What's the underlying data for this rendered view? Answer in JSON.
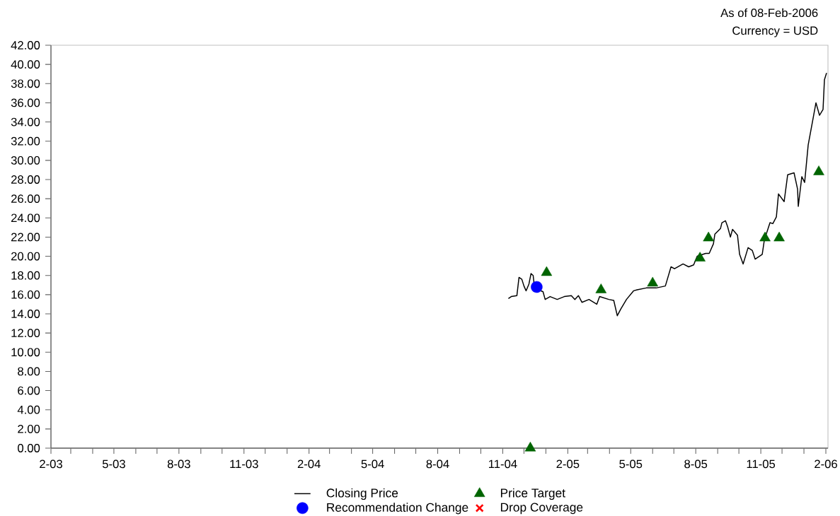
{
  "chart_data": {
    "type": "line",
    "annotations": [
      "As of 08-Feb-2006",
      "Currency = USD"
    ],
    "xlim": [
      "2003-02-01",
      "2006-02-04"
    ],
    "xticks": [
      {
        "value": "2003-02",
        "label": "2-03"
      },
      {
        "value": "2003-03",
        "label": null
      },
      {
        "value": "2003-04",
        "label": null
      },
      {
        "value": "2003-05",
        "label": "5-03"
      },
      {
        "value": "2003-06",
        "label": null
      },
      {
        "value": "2003-07",
        "label": null
      },
      {
        "value": "2003-08",
        "label": "8-03"
      },
      {
        "value": "2003-09",
        "label": null
      },
      {
        "value": "2003-10",
        "label": null
      },
      {
        "value": "2003-11",
        "label": "11-03"
      },
      {
        "value": "2003-12",
        "label": null
      },
      {
        "value": "2004-01",
        "label": null
      },
      {
        "value": "2004-02",
        "label": "2-04"
      },
      {
        "value": "2004-03",
        "label": null
      },
      {
        "value": "2004-04",
        "label": null
      },
      {
        "value": "2004-05",
        "label": "5-04"
      },
      {
        "value": "2004-06",
        "label": null
      },
      {
        "value": "2004-07",
        "label": null
      },
      {
        "value": "2004-08",
        "label": "8-04"
      },
      {
        "value": "2004-09",
        "label": null
      },
      {
        "value": "2004-10",
        "label": null
      },
      {
        "value": "2004-11",
        "label": "11-04"
      },
      {
        "value": "2004-12",
        "label": null
      },
      {
        "value": "2005-01",
        "label": null
      },
      {
        "value": "2005-02",
        "label": "2-05"
      },
      {
        "value": "2005-03",
        "label": null
      },
      {
        "value": "2005-04",
        "label": null
      },
      {
        "value": "2005-05",
        "label": "5-05"
      },
      {
        "value": "2005-06",
        "label": null
      },
      {
        "value": "2005-07",
        "label": null
      },
      {
        "value": "2005-08",
        "label": "8-05"
      },
      {
        "value": "2005-09",
        "label": null
      },
      {
        "value": "2005-10",
        "label": null
      },
      {
        "value": "2005-11",
        "label": "11-05"
      },
      {
        "value": "2005-12",
        "label": null
      },
      {
        "value": "2006-01",
        "label": null
      },
      {
        "value": "2006-02",
        "label": "2-06"
      }
    ],
    "ylim": [
      0,
      42
    ],
    "yticks": [
      {
        "value": 0,
        "label": "0.00"
      },
      {
        "value": 2,
        "label": "2.00"
      },
      {
        "value": 4,
        "label": "4.00"
      },
      {
        "value": 6,
        "label": "6.00"
      },
      {
        "value": 8,
        "label": "8.00"
      },
      {
        "value": 10,
        "label": "10.00"
      },
      {
        "value": 12,
        "label": "12.00"
      },
      {
        "value": 14,
        "label": "14.00"
      },
      {
        "value": 16,
        "label": "16.00"
      },
      {
        "value": 18,
        "label": "18.00"
      },
      {
        "value": 20,
        "label": "20.00"
      },
      {
        "value": 22,
        "label": "22.00"
      },
      {
        "value": 24,
        "label": "24.00"
      },
      {
        "value": 26,
        "label": "26.00"
      },
      {
        "value": 28,
        "label": "28.00"
      },
      {
        "value": 30,
        "label": "30.00"
      },
      {
        "value": 32,
        "label": "32.00"
      },
      {
        "value": 34,
        "label": "34.00"
      },
      {
        "value": 36,
        "label": "36.00"
      },
      {
        "value": 38,
        "label": "38.00"
      },
      {
        "value": 40,
        "label": "40.00"
      },
      {
        "value": 42,
        "label": "42.00"
      }
    ],
    "grid": false,
    "legend": "bottom",
    "series": [
      {
        "name": "Closing Price",
        "color": "#000000",
        "marker": "none",
        "line_style": "solid",
        "x": [
          "2004-11-09",
          "2004-11-13",
          "2004-11-21",
          "2004-11-24",
          "2004-11-28",
          "2004-12-01",
          "2004-12-04",
          "2004-12-08",
          "2004-12-11",
          "2004-12-14",
          "2004-12-16",
          "2004-12-28",
          "2004-12-31",
          "2005-01-07",
          "2005-01-17",
          "2005-01-27",
          "2005-02-06",
          "2005-02-11",
          "2005-02-16",
          "2005-02-21",
          "2005-03-03",
          "2005-03-14",
          "2005-03-18",
          "2005-03-31",
          "2005-04-07",
          "2005-04-12",
          "2005-04-17",
          "2005-04-25",
          "2005-05-05",
          "2005-05-10",
          "2005-05-23",
          "2005-06-06",
          "2005-06-19",
          "2005-06-27",
          "2005-07-02",
          "2005-07-14",
          "2005-07-22",
          "2005-07-29",
          "2005-08-03",
          "2005-08-15",
          "2005-08-20",
          "2005-08-26",
          "2005-08-28",
          "2005-09-05",
          "2005-09-07",
          "2005-09-12",
          "2005-09-15",
          "2005-09-19",
          "2005-09-22",
          "2005-09-29",
          "2005-10-02",
          "2005-10-07",
          "2005-10-14",
          "2005-10-20",
          "2005-10-24",
          "2005-11-03",
          "2005-11-06",
          "2005-11-14",
          "2005-11-18",
          "2005-11-23",
          "2005-11-26",
          "2005-12-04",
          "2005-12-09",
          "2005-12-18",
          "2005-12-23",
          "2005-12-24",
          "2005-12-29",
          "2006-01-02",
          "2006-01-07",
          "2006-01-13",
          "2006-01-18",
          "2006-01-23",
          "2006-01-28",
          "2006-01-30",
          "2006-02-02"
        ],
        "values": [
          15.6,
          15.8,
          15.9,
          17.8,
          17.6,
          16.9,
          16.4,
          17.1,
          18.2,
          18.0,
          16.7,
          16.3,
          15.5,
          15.8,
          15.5,
          15.8,
          15.9,
          15.5,
          15.9,
          15.2,
          15.5,
          15.0,
          15.8,
          15.5,
          15.4,
          13.8,
          14.5,
          15.5,
          16.4,
          16.5,
          16.7,
          16.7,
          16.9,
          18.9,
          18.7,
          19.2,
          18.9,
          19.1,
          20.0,
          20.3,
          20.3,
          21.3,
          22.3,
          22.9,
          23.5,
          23.7,
          23.1,
          22.0,
          22.8,
          22.2,
          20.2,
          19.2,
          20.9,
          20.6,
          19.7,
          20.2,
          21.7,
          23.5,
          23.4,
          24.1,
          26.5,
          25.7,
          28.5,
          28.7,
          27.0,
          25.2,
          28.3,
          27.7,
          31.6,
          34.0,
          36.0,
          34.7,
          35.3,
          38.4,
          39.1
        ]
      },
      {
        "name": "Price Target",
        "type": "scatter",
        "color": "#006400",
        "marker": "triangle",
        "x": [
          "2004-12-10",
          "2005-01-02",
          "2005-03-20",
          "2005-06-01",
          "2005-08-07",
          "2005-08-19",
          "2005-11-07",
          "2005-11-27",
          "2006-01-22"
        ],
        "values": [
          0,
          18.3,
          16.5,
          17.2,
          19.8,
          21.9,
          21.9,
          21.9,
          28.8
        ]
      },
      {
        "name": "Recommendation Change",
        "type": "scatter",
        "color": "#0000ff",
        "marker": "circle",
        "x": [
          "2004-12-19"
        ],
        "values": [
          16.8
        ]
      },
      {
        "name": "Drop Coverage",
        "type": "scatter",
        "color": "#ff0000",
        "marker": "cross"
      }
    ]
  }
}
